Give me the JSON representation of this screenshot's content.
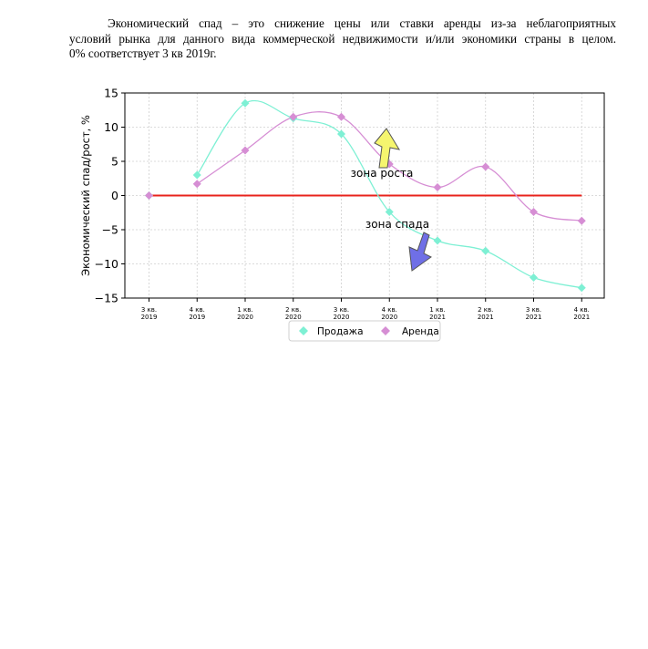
{
  "document": {
    "paragraph_line1": "Экономический спад – это снижение цены или ставки аренды из-за неблагоприятных",
    "paragraph_line2": "условий рынка для данного вида коммерческой недвижимости и/или экономики страны в целом.",
    "paragraph_line3": "0% соответствует 3 кв 2019г."
  },
  "chart_data": {
    "type": "line",
    "ylabel": "Экономический спад/рост, %",
    "xlabel": "",
    "ylim": [
      -15,
      15
    ],
    "yticks": [
      15,
      10,
      5,
      0,
      -5,
      -10,
      -15
    ],
    "grid": true,
    "legend_position": "bottom-center",
    "categories": [
      [
        "3 кв.",
        "2019"
      ],
      [
        "4 кв.",
        "2019"
      ],
      [
        "1 кв.",
        "2020"
      ],
      [
        "2 кв.",
        "2020"
      ],
      [
        "3 кв.",
        "2020"
      ],
      [
        "4 кв.",
        "2020"
      ],
      [
        "1 кв.",
        "2021"
      ],
      [
        "2 кв.",
        "2021"
      ],
      [
        "3 кв.",
        "2021"
      ],
      [
        "4 кв.",
        "2021"
      ]
    ],
    "series": [
      {
        "name": "Продажа",
        "color": "#7ef0d4",
        "values": [
          0,
          3.0,
          13.5,
          11.3,
          9.0,
          -2.4,
          -6.6,
          -8.1,
          -12.0,
          -13.5
        ]
      },
      {
        "name": "Аренда",
        "color": "#d68ed4",
        "values": [
          0,
          1.7,
          6.6,
          11.5,
          11.5,
          4.6,
          1.2,
          4.2,
          -2.4,
          -3.7
        ]
      }
    ],
    "zero_line_color": "#e8231c",
    "annotations": [
      {
        "text": "зона роста",
        "arrow": "up",
        "arrow_color": "#f5f56e"
      },
      {
        "text": "зона спада",
        "arrow": "down",
        "arrow_color": "#6f6fe6"
      }
    ]
  }
}
